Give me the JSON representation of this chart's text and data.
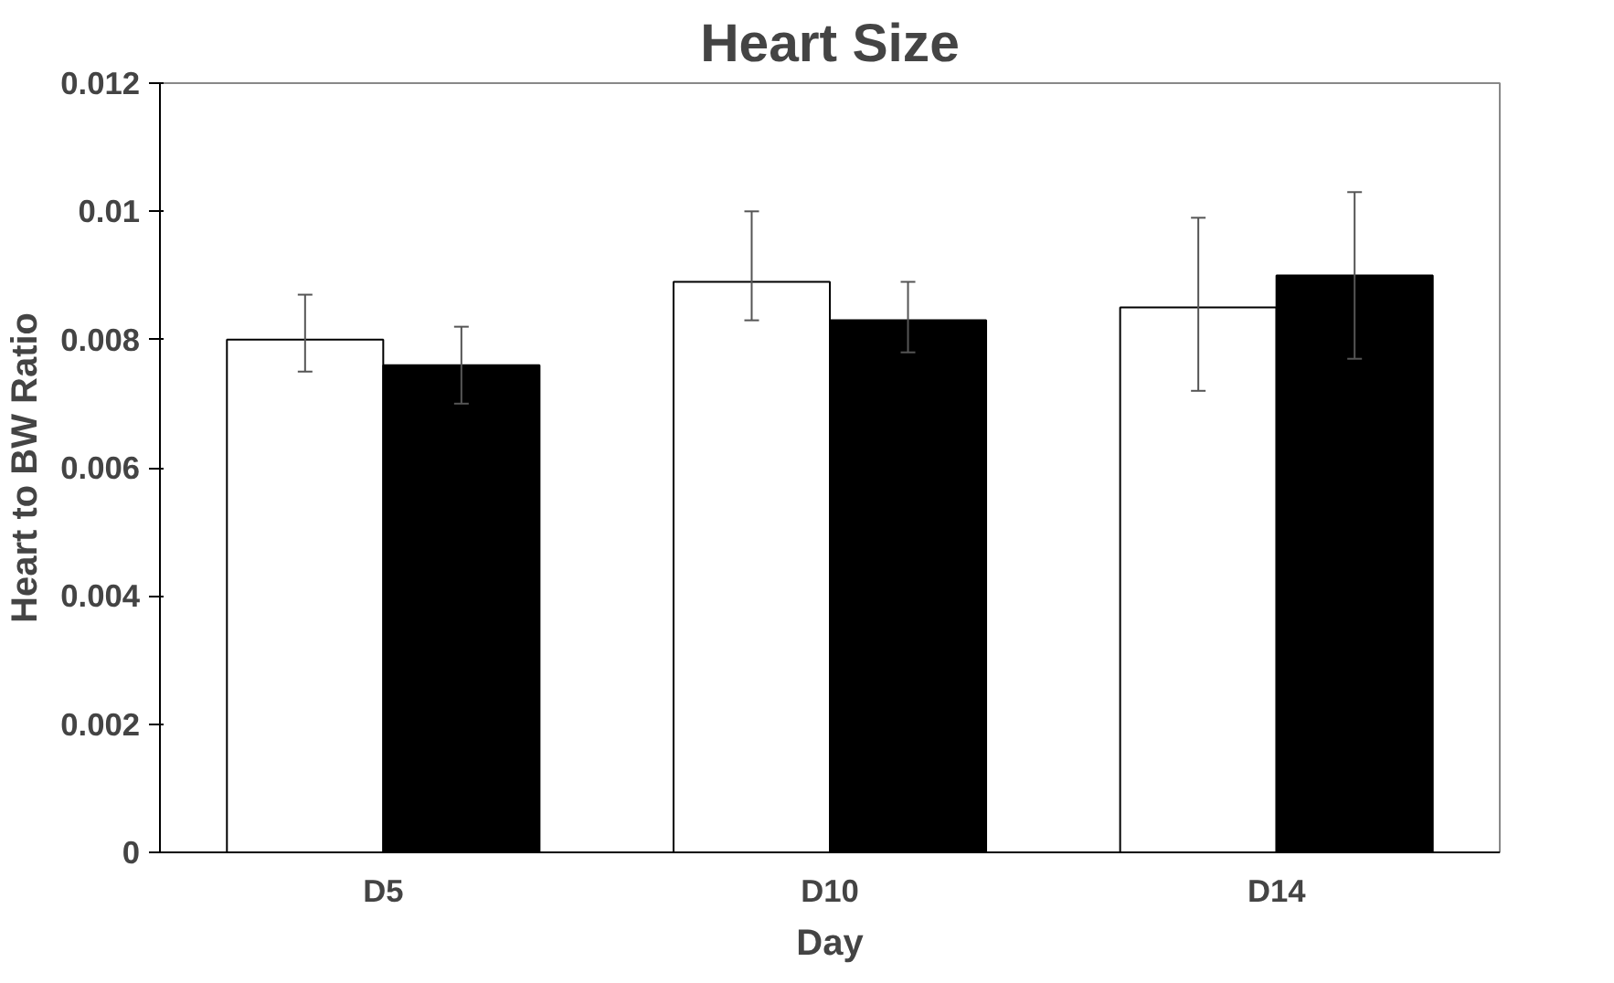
{
  "chart_data": {
    "type": "bar",
    "title": "Heart Size",
    "xlabel": "Day",
    "ylabel": "Heart to BW Ratio",
    "categories": [
      "D5",
      "D10",
      "D14"
    ],
    "series": [
      {
        "color": "#ffffff",
        "values": [
          0.008,
          0.0089,
          0.0085
        ],
        "errors": [
          [
            0.0075,
            0.0087
          ],
          [
            0.0083,
            0.01
          ],
          [
            0.0072,
            0.0099
          ]
        ]
      },
      {
        "color": "#000000",
        "values": [
          0.0076,
          0.0083,
          0.009
        ],
        "errors": [
          [
            0.007,
            0.0082
          ],
          [
            0.0078,
            0.0089
          ],
          [
            0.0077,
            0.0103
          ]
        ]
      }
    ],
    "ylim": [
      0,
      0.012
    ],
    "yticks": [
      0,
      0.002,
      0.004,
      0.006,
      0.008,
      {
        "value": 0.01,
        "label": "0.01"
      },
      0.012
    ],
    "grid": false
  }
}
